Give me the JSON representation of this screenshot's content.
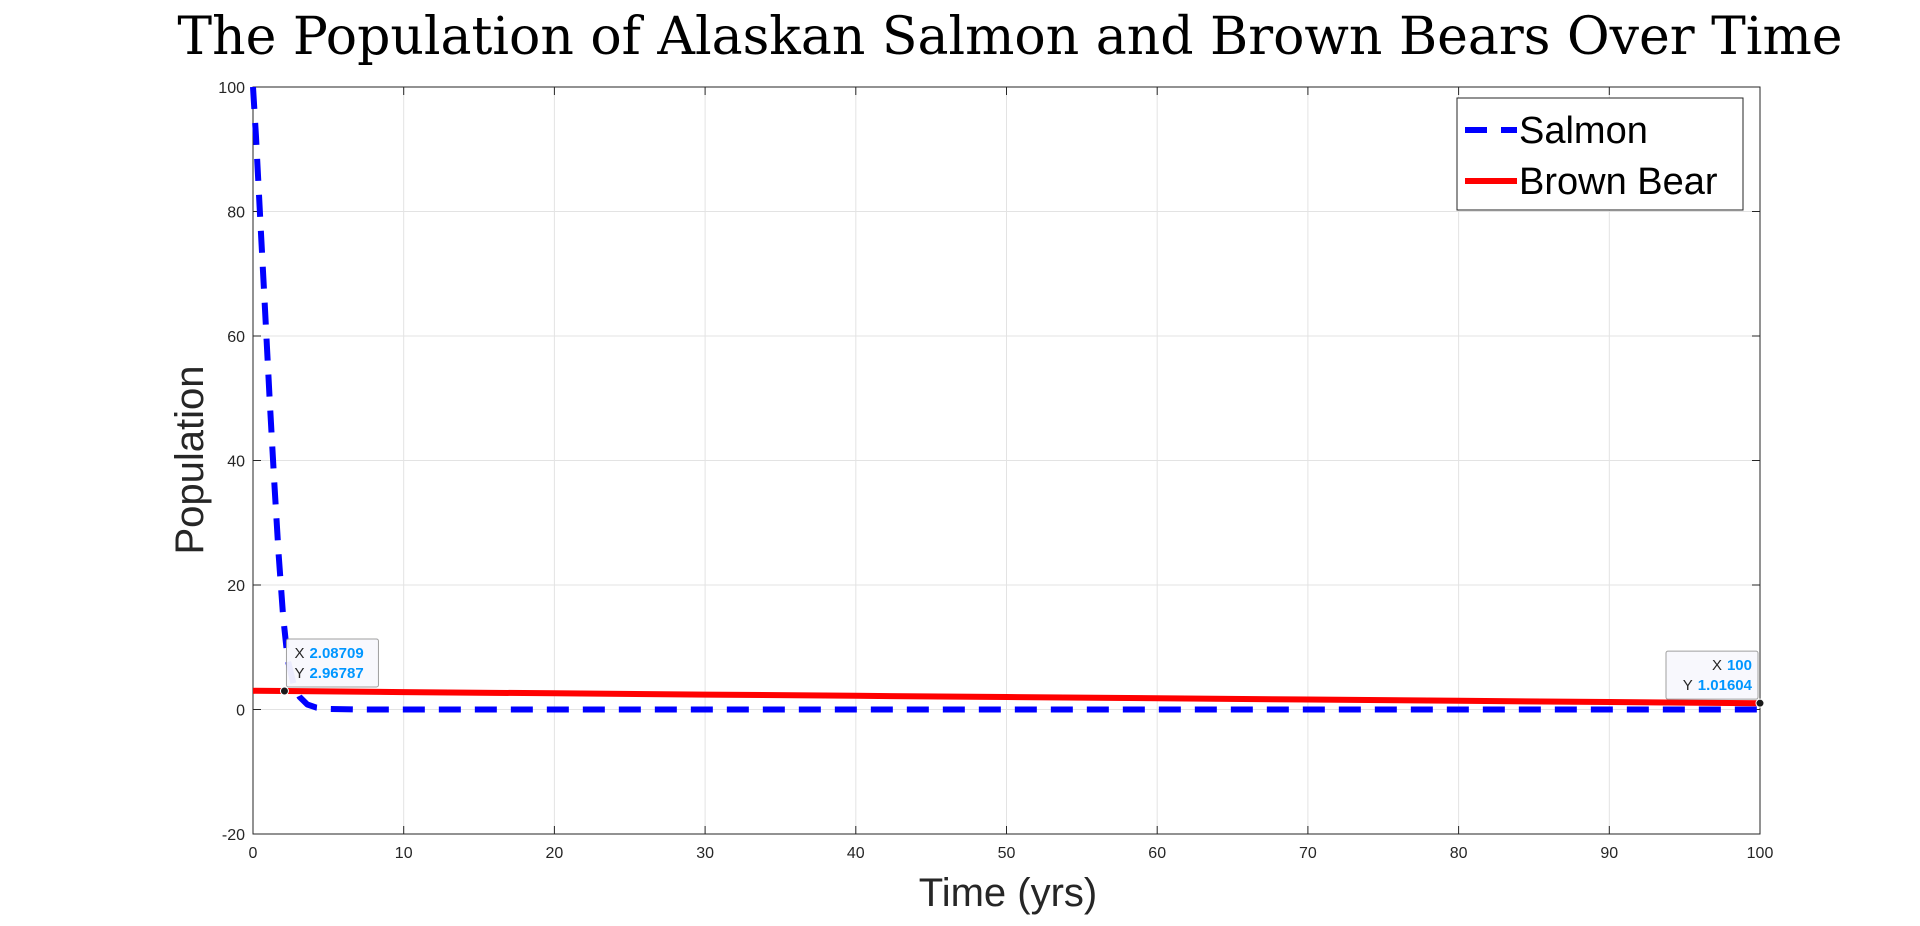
{
  "chart_data": {
    "type": "line",
    "title": "The Population of Alaskan Salmon and Brown Bears Over Time",
    "xlabel": "Time (yrs)",
    "ylabel": "Population",
    "xlim": [
      0,
      100
    ],
    "ylim": [
      -20,
      100
    ],
    "xticks": [
      0,
      10,
      20,
      30,
      40,
      50,
      60,
      70,
      80,
      90,
      100
    ],
    "yticks": [
      -20,
      0,
      20,
      40,
      60,
      80,
      100
    ],
    "grid": true,
    "legend_position": "top-right",
    "series": [
      {
        "name": "Salmon",
        "color": "#0000ff",
        "line_style": "dashed",
        "x": [
          0,
          0.2,
          0.5,
          0.8,
          1.1,
          1.4,
          1.7,
          2.0,
          2.3,
          2.7,
          3.1,
          3.6,
          4.2,
          5,
          7,
          10,
          20,
          30,
          40,
          50,
          60,
          70,
          80,
          90,
          100
        ],
        "y": [
          100,
          92,
          78,
          64,
          50,
          37,
          25,
          15,
          8,
          4,
          2,
          0.8,
          0.3,
          0.1,
          0,
          0,
          0,
          0,
          0,
          0,
          0,
          0,
          0,
          0,
          0
        ]
      },
      {
        "name": "Brown Bear",
        "color": "#ff0000",
        "line_style": "solid",
        "x": [
          0,
          2.08709,
          10,
          20,
          30,
          40,
          50,
          60,
          70,
          80,
          90,
          100
        ],
        "y": [
          3,
          2.96787,
          2.8,
          2.6,
          2.4,
          2.2,
          2.0,
          1.8,
          1.6,
          1.4,
          1.2,
          1.01604
        ]
      }
    ],
    "datatips": [
      {
        "x_label": "X",
        "x_value": "2.08709",
        "y_label": "Y",
        "y_value": "2.96787",
        "x": 2.08709,
        "y": 2.96787
      },
      {
        "x_label": "X",
        "x_value": "100",
        "y_label": "Y",
        "y_value": "1.01604",
        "x": 100,
        "y": 1.01604
      }
    ]
  }
}
